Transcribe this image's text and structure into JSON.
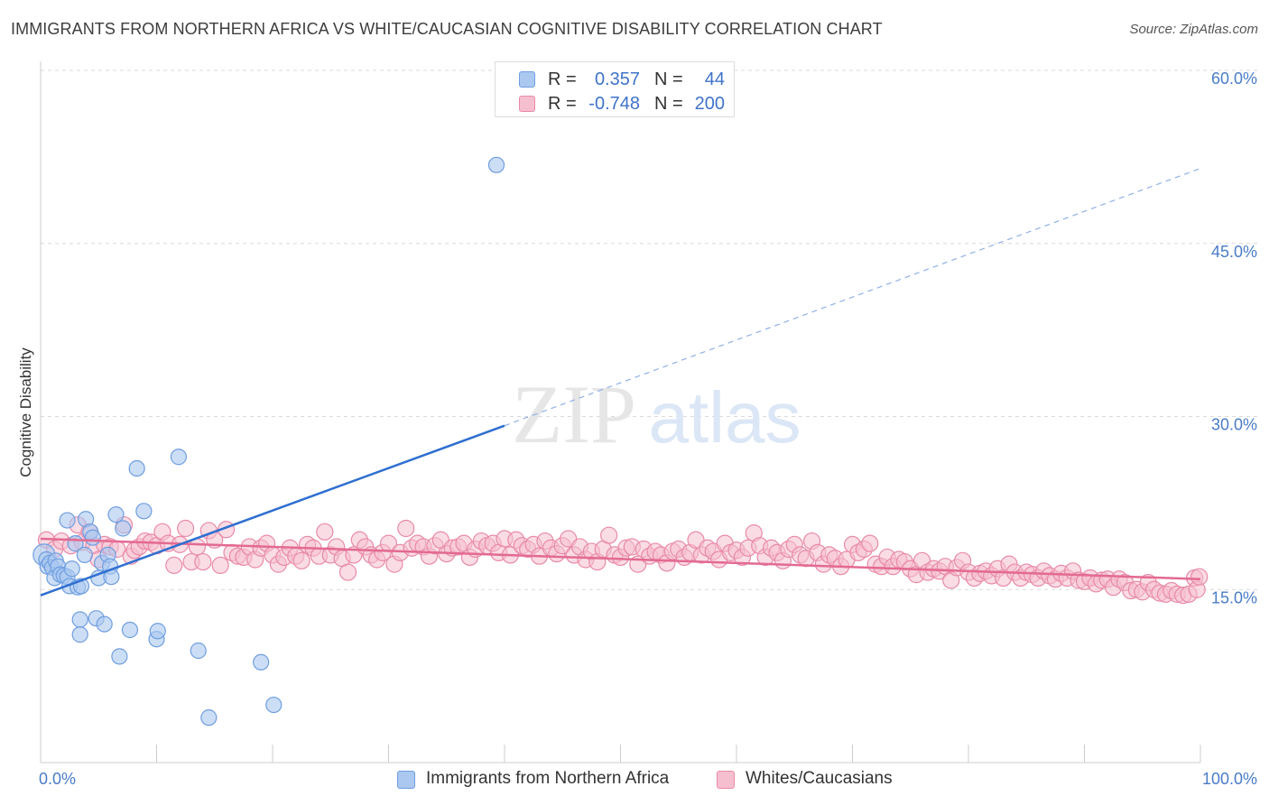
{
  "title": "IMMIGRANTS FROM NORTHERN AFRICA VS WHITE/CAUCASIAN COGNITIVE DISABILITY CORRELATION CHART",
  "source": "Source: ZipAtlas.com",
  "watermark": {
    "zip": "ZIP",
    "atlas": "atlas"
  },
  "colors": {
    "blue_fill": "#aac8f0",
    "blue_stroke": "#6f9ee0",
    "blue_line": "#2f6fd0",
    "pink_fill": "#f6bfd0",
    "pink_stroke": "#e88aa8",
    "pink_line": "#e36a93",
    "tick": "#4a7cc8",
    "grid": "#d9d9d9"
  },
  "legend_top": [
    {
      "r_label": "R =",
      "r_value": "0.357",
      "n_label": "N =",
      "n_value": "44"
    },
    {
      "r_label": "R =",
      "r_value": "-0.748",
      "n_label": "N =",
      "n_value": "200"
    }
  ],
  "chart_data": {
    "type": "scatter",
    "xlabel": "",
    "ylabel": "Cognitive Disability",
    "xlim": [
      0,
      100
    ],
    "ylim": [
      0,
      60
    ],
    "x_tick_labels": [
      "0.0%",
      "100.0%"
    ],
    "y_ticks": [
      15,
      30,
      45,
      60
    ],
    "y_tick_labels": [
      "15.0%",
      "30.0%",
      "45.0%",
      "60.0%"
    ],
    "grid": "horizontal dashed",
    "legend_position": "bottom",
    "series": [
      {
        "name": "Immigrants from Northern Africa",
        "color": "blue",
        "points": [
          [
            0.3,
            18.0
          ],
          [
            0.5,
            17.6
          ],
          [
            0.6,
            17.0
          ],
          [
            0.8,
            17.3
          ],
          [
            1.0,
            16.9
          ],
          [
            1.2,
            16.0
          ],
          [
            1.3,
            17.5
          ],
          [
            1.5,
            17.0
          ],
          [
            1.7,
            16.3
          ],
          [
            2.0,
            16.2
          ],
          [
            2.3,
            16.1
          ],
          [
            2.3,
            21.0
          ],
          [
            2.5,
            15.3
          ],
          [
            2.7,
            16.8
          ],
          [
            3.0,
            19.0
          ],
          [
            3.2,
            15.2
          ],
          [
            3.5,
            15.3
          ],
          [
            3.4,
            12.4
          ],
          [
            3.4,
            11.1
          ],
          [
            3.8,
            18.0
          ],
          [
            3.9,
            21.1
          ],
          [
            4.3,
            20.0
          ],
          [
            4.5,
            19.5
          ],
          [
            4.8,
            12.5
          ],
          [
            5.0,
            16.0
          ],
          [
            5.3,
            17.3
          ],
          [
            5.5,
            12.0
          ],
          [
            5.8,
            18.0
          ],
          [
            6.0,
            17.0
          ],
          [
            6.1,
            16.1
          ],
          [
            6.5,
            21.5
          ],
          [
            6.8,
            9.2
          ],
          [
            7.1,
            20.3
          ],
          [
            7.7,
            11.5
          ],
          [
            8.3,
            25.5
          ],
          [
            8.9,
            21.8
          ],
          [
            10.0,
            10.7
          ],
          [
            10.1,
            11.4
          ],
          [
            11.9,
            26.5
          ],
          [
            13.6,
            9.7
          ],
          [
            14.5,
            3.9
          ],
          [
            19.0,
            8.7
          ],
          [
            20.1,
            5.0
          ],
          [
            39.3,
            51.8
          ]
        ]
      },
      {
        "name": "Whites/Caucasians",
        "color": "pink",
        "points": [
          [
            0.5,
            19.3
          ],
          [
            1.2,
            18.5
          ],
          [
            1.8,
            19.2
          ],
          [
            2.6,
            18.8
          ],
          [
            3.2,
            20.6
          ],
          [
            3.6,
            19.1
          ],
          [
            4.2,
            20.0
          ],
          [
            4.6,
            18.8
          ],
          [
            5.0,
            17.6
          ],
          [
            5.5,
            18.9
          ],
          [
            6.0,
            18.7
          ],
          [
            6.6,
            18.5
          ],
          [
            7.2,
            20.6
          ],
          [
            7.8,
            17.9
          ],
          [
            8.1,
            18.4
          ],
          [
            8.5,
            18.7
          ],
          [
            9.0,
            19.2
          ],
          [
            9.5,
            19.1
          ],
          [
            10.0,
            18.8
          ],
          [
            10.5,
            20.0
          ],
          [
            11.0,
            19.0
          ],
          [
            11.5,
            17.1
          ],
          [
            12.0,
            18.9
          ],
          [
            12.5,
            20.3
          ],
          [
            13.0,
            17.4
          ],
          [
            13.5,
            18.7
          ],
          [
            14.0,
            17.4
          ],
          [
            14.5,
            20.1
          ],
          [
            15.0,
            19.3
          ],
          [
            15.5,
            17.1
          ],
          [
            16.0,
            20.2
          ],
          [
            16.5,
            18.2
          ],
          [
            17.0,
            17.9
          ],
          [
            17.5,
            17.8
          ],
          [
            18.0,
            18.7
          ],
          [
            18.5,
            17.6
          ],
          [
            19.0,
            18.6
          ],
          [
            19.5,
            19.0
          ],
          [
            20.0,
            18.0
          ],
          [
            20.5,
            17.2
          ],
          [
            21.0,
            17.8
          ],
          [
            21.5,
            18.6
          ],
          [
            22.0,
            17.9
          ],
          [
            22.5,
            17.5
          ],
          [
            23.0,
            18.9
          ],
          [
            23.5,
            18.6
          ],
          [
            24.0,
            17.9
          ],
          [
            24.5,
            20.0
          ],
          [
            25.0,
            18.0
          ],
          [
            25.5,
            18.7
          ],
          [
            26.0,
            17.7
          ],
          [
            26.5,
            16.5
          ],
          [
            27.0,
            18.0
          ],
          [
            27.5,
            19.3
          ],
          [
            28.0,
            18.7
          ],
          [
            28.5,
            18.0
          ],
          [
            29.0,
            17.6
          ],
          [
            29.5,
            18.2
          ],
          [
            30.0,
            19.0
          ],
          [
            30.5,
            17.2
          ],
          [
            31.0,
            18.2
          ],
          [
            31.5,
            20.3
          ],
          [
            32.0,
            18.6
          ],
          [
            32.5,
            19.0
          ],
          [
            33.0,
            18.7
          ],
          [
            33.5,
            17.9
          ],
          [
            34.0,
            18.8
          ],
          [
            34.5,
            19.3
          ],
          [
            35.0,
            18.1
          ],
          [
            35.5,
            18.6
          ],
          [
            36.0,
            18.7
          ],
          [
            36.5,
            19.0
          ],
          [
            37.0,
            17.8
          ],
          [
            37.5,
            18.5
          ],
          [
            38.0,
            19.2
          ],
          [
            38.5,
            18.8
          ],
          [
            39.0,
            19.0
          ],
          [
            39.5,
            18.2
          ],
          [
            40.0,
            19.4
          ],
          [
            40.5,
            18.0
          ],
          [
            41.0,
            19.3
          ],
          [
            41.5,
            18.8
          ],
          [
            42.0,
            18.5
          ],
          [
            42.5,
            18.9
          ],
          [
            43.0,
            17.9
          ],
          [
            43.5,
            19.2
          ],
          [
            44.0,
            18.6
          ],
          [
            44.5,
            18.1
          ],
          [
            45.0,
            18.8
          ],
          [
            45.5,
            19.4
          ],
          [
            46.0,
            18.0
          ],
          [
            46.5,
            18.7
          ],
          [
            47.0,
            17.6
          ],
          [
            47.5,
            18.3
          ],
          [
            48.0,
            17.4
          ],
          [
            48.5,
            18.5
          ],
          [
            49.0,
            19.7
          ],
          [
            49.5,
            18.0
          ],
          [
            50.0,
            17.8
          ],
          [
            50.5,
            18.6
          ],
          [
            51.0,
            18.7
          ],
          [
            51.5,
            17.2
          ],
          [
            52.0,
            18.5
          ],
          [
            52.5,
            17.9
          ],
          [
            53.0,
            18.3
          ],
          [
            53.5,
            18.0
          ],
          [
            54.0,
            17.3
          ],
          [
            54.5,
            18.3
          ],
          [
            55.0,
            18.5
          ],
          [
            55.5,
            17.8
          ],
          [
            56.0,
            18.2
          ],
          [
            56.5,
            19.3
          ],
          [
            57.0,
            18.0
          ],
          [
            57.5,
            18.6
          ],
          [
            58.0,
            18.3
          ],
          [
            58.5,
            17.6
          ],
          [
            59.0,
            19.0
          ],
          [
            59.5,
            18.2
          ],
          [
            60.0,
            18.4
          ],
          [
            60.5,
            17.8
          ],
          [
            61.0,
            18.6
          ],
          [
            61.5,
            19.9
          ],
          [
            62.0,
            18.8
          ],
          [
            62.5,
            17.8
          ],
          [
            63.0,
            18.6
          ],
          [
            63.5,
            18.2
          ],
          [
            64.0,
            17.5
          ],
          [
            64.5,
            18.5
          ],
          [
            65.0,
            18.9
          ],
          [
            65.5,
            18.0
          ],
          [
            66.0,
            17.7
          ],
          [
            66.5,
            19.2
          ],
          [
            67.0,
            18.2
          ],
          [
            67.5,
            17.2
          ],
          [
            68.0,
            18.0
          ],
          [
            68.5,
            17.7
          ],
          [
            69.0,
            17.0
          ],
          [
            69.5,
            17.6
          ],
          [
            70.0,
            18.9
          ],
          [
            70.5,
            18.2
          ],
          [
            71.0,
            18.5
          ],
          [
            71.5,
            19.0
          ],
          [
            72.0,
            17.2
          ],
          [
            72.5,
            17.0
          ],
          [
            73.0,
            17.8
          ],
          [
            73.5,
            17.0
          ],
          [
            74.0,
            17.6
          ],
          [
            74.5,
            17.4
          ],
          [
            75.0,
            16.8
          ],
          [
            75.5,
            16.3
          ],
          [
            76.0,
            17.5
          ],
          [
            76.5,
            16.5
          ],
          [
            77.0,
            16.8
          ],
          [
            77.5,
            16.6
          ],
          [
            78.0,
            17.0
          ],
          [
            78.5,
            15.8
          ],
          [
            79.0,
            16.9
          ],
          [
            79.5,
            17.5
          ],
          [
            80.0,
            16.5
          ],
          [
            80.5,
            16.0
          ],
          [
            81.0,
            16.4
          ],
          [
            81.5,
            16.6
          ],
          [
            82.0,
            16.2
          ],
          [
            82.5,
            16.8
          ],
          [
            83.0,
            16.0
          ],
          [
            83.5,
            17.2
          ],
          [
            84.0,
            16.5
          ],
          [
            84.5,
            16.0
          ],
          [
            85.0,
            16.5
          ],
          [
            85.5,
            16.3
          ],
          [
            86.0,
            16.0
          ],
          [
            86.5,
            16.6
          ],
          [
            87.0,
            16.2
          ],
          [
            87.5,
            15.9
          ],
          [
            88.0,
            16.4
          ],
          [
            88.5,
            16.0
          ],
          [
            89.0,
            16.6
          ],
          [
            89.5,
            15.8
          ],
          [
            90.0,
            15.7
          ],
          [
            90.5,
            16.0
          ],
          [
            91.0,
            15.5
          ],
          [
            91.5,
            15.8
          ],
          [
            92.0,
            15.9
          ],
          [
            92.5,
            15.2
          ],
          [
            93.0,
            15.9
          ],
          [
            93.5,
            15.6
          ],
          [
            94.0,
            14.9
          ],
          [
            94.5,
            15.0
          ],
          [
            95.0,
            14.8
          ],
          [
            95.5,
            15.6
          ],
          [
            96.0,
            15.0
          ],
          [
            96.5,
            14.7
          ],
          [
            97.0,
            14.6
          ],
          [
            97.5,
            14.9
          ],
          [
            98.0,
            14.6
          ],
          [
            98.5,
            14.5
          ],
          [
            99.0,
            14.6
          ],
          [
            99.5,
            16.0
          ],
          [
            99.7,
            15.0
          ],
          [
            99.9,
            16.1
          ]
        ]
      }
    ],
    "trendlines": [
      {
        "series": "Immigrants from Northern Africa",
        "x_start": 0,
        "y_start": 14.5,
        "x_solid_end": 40,
        "y_solid_end": 29.2,
        "x_end": 100,
        "y_end": 51.5
      },
      {
        "series": "Whites/Caucasians",
        "x_start": 0,
        "y_start": 19.4,
        "x_end": 100,
        "y_end": 15.9
      }
    ]
  }
}
